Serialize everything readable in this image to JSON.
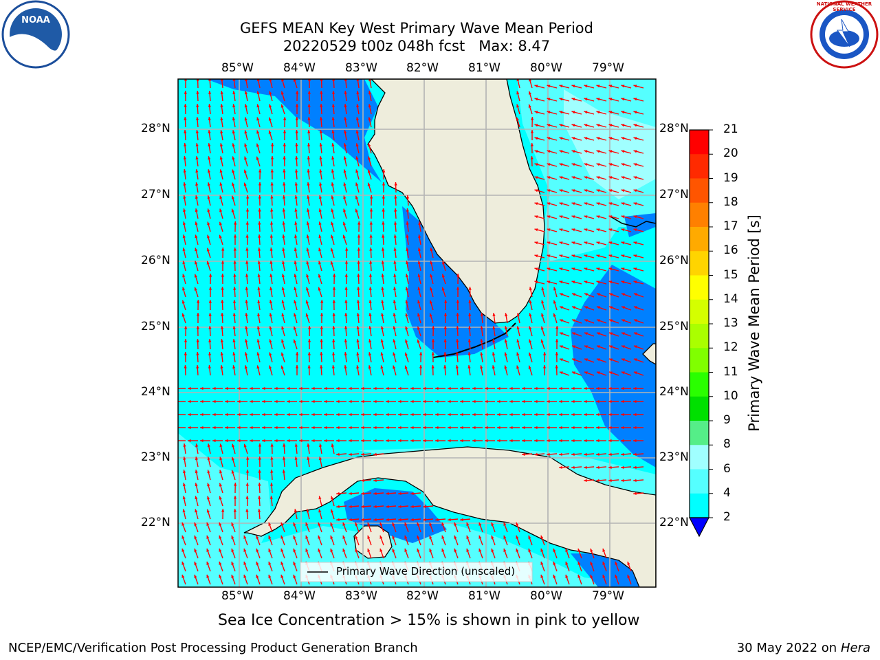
{
  "title": {
    "line1": "GEFS MEAN Key West Primary Wave Mean Period",
    "line2": "20220529 t00z 048h fcst   Max: 8.47"
  },
  "map": {
    "lon_labels": [
      "85°W",
      "84°W",
      "83°W",
      "82°W",
      "81°W",
      "80°W",
      "79°W"
    ],
    "lat_labels": [
      "28°N",
      "27°N",
      "26°N",
      "25°N",
      "24°N",
      "23°N",
      "22°N"
    ],
    "legend_label": "Primary Wave Direction (unscaled)",
    "colors": {
      "land": "#eeeddc",
      "cyan": "#00ffff",
      "light_cyan": "#55ffff",
      "pale_cyan": "#a0ffff",
      "blue": "#0080ff",
      "arrow": "#ff0000",
      "grid": "#b3b3b3"
    }
  },
  "colorbar": {
    "label": "Primary Wave Mean Period [s]",
    "ticks": [
      "21",
      "20",
      "19",
      "18",
      "17",
      "16",
      "15",
      "14",
      "13",
      "12",
      "11",
      "10",
      "9",
      "8",
      "6",
      "4",
      "2"
    ],
    "colors": [
      "#ff0000",
      "#ff2a00",
      "#ff5500",
      "#ff8000",
      "#ffaa00",
      "#ffd400",
      "#ffff00",
      "#d4ff00",
      "#aaff00",
      "#80ff00",
      "#2aff00",
      "#00e000",
      "#55ee88",
      "#a0ffff",
      "#55ffff",
      "#00ffff",
      "#0080ff"
    ],
    "under_color": "#0000ff"
  },
  "ice_note": "Sea Ice Concentration > 15% is shown in pink to yellow",
  "footer": {
    "left": "NCEP/EMC/Verification Post Processing Product Generation Branch",
    "right_date": "30 May 2022 on",
    "right_host": "Hera"
  },
  "logos": {
    "noaa": "NOAA",
    "nws": "NATIONAL WEATHER SERVICE"
  }
}
